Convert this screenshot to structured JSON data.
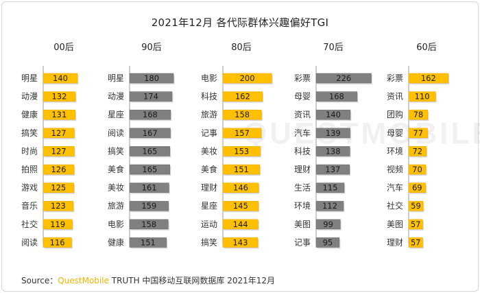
{
  "title": "2021年12月 各代际群体兴趣偏好TGI",
  "watermark": "QUESTMOBILE",
  "footer": {
    "prefix": "Source：",
    "brand": "QuestMobile",
    "rest": " TRUTH 中国移动互联网数据库 2021年12月"
  },
  "colors": {
    "highlight": "#ffc000",
    "highlight_edge": "#f0a800",
    "normal": "#808080",
    "normal_edge": "#6f6f6f"
  },
  "chart_data": [
    {
      "type": "bar",
      "title": "00后",
      "orientation": "horizontal",
      "xlim": [
        0,
        240
      ],
      "categories": [
        "明星",
        "动漫",
        "健康",
        "搞笑",
        "时尚",
        "拍照",
        "游戏",
        "音乐",
        "社交",
        "阅读"
      ],
      "values": [
        140,
        132,
        131,
        127,
        127,
        126,
        125,
        123,
        119,
        116
      ],
      "highlight": [
        true,
        true,
        true,
        true,
        true,
        true,
        true,
        true,
        true,
        true
      ]
    },
    {
      "type": "bar",
      "title": "90后",
      "orientation": "horizontal",
      "xlim": [
        0,
        240
      ],
      "categories": [
        "明星",
        "动漫",
        "星座",
        "阅读",
        "搞笑",
        "美食",
        "美妆",
        "旅游",
        "电影",
        "健康"
      ],
      "values": [
        180,
        174,
        168,
        167,
        165,
        165,
        161,
        159,
        158,
        151
      ],
      "highlight": [
        false,
        false,
        false,
        false,
        false,
        false,
        false,
        false,
        false,
        false
      ]
    },
    {
      "type": "bar",
      "title": "80后",
      "orientation": "horizontal",
      "xlim": [
        0,
        240
      ],
      "categories": [
        "电影",
        "科技",
        "旅游",
        "记事",
        "美妆",
        "美食",
        "理财",
        "星座",
        "运动",
        "搞笑"
      ],
      "values": [
        200,
        162,
        158,
        157,
        153,
        151,
        146,
        145,
        144,
        143
      ],
      "highlight": [
        true,
        true,
        true,
        true,
        true,
        true,
        true,
        true,
        true,
        true
      ]
    },
    {
      "type": "bar",
      "title": "70后",
      "orientation": "horizontal",
      "xlim": [
        0,
        240
      ],
      "categories": [
        "彩票",
        "母婴",
        "资讯",
        "汽车",
        "科技",
        "理财",
        "生活",
        "环境",
        "美图",
        "记事"
      ],
      "values": [
        226,
        168,
        140,
        139,
        138,
        137,
        115,
        112,
        99,
        95
      ],
      "highlight": [
        false,
        false,
        false,
        false,
        false,
        false,
        false,
        false,
        false,
        false
      ]
    },
    {
      "type": "bar",
      "title": "60后",
      "orientation": "horizontal",
      "xlim": [
        0,
        240
      ],
      "categories": [
        "彩票",
        "资讯",
        "团购",
        "母婴",
        "环境",
        "视频",
        "汽车",
        "社交",
        "美图",
        "理财"
      ],
      "values": [
        162,
        110,
        78,
        77,
        72,
        70,
        69,
        59,
        57,
        57
      ],
      "highlight": [
        true,
        true,
        true,
        true,
        true,
        true,
        true,
        true,
        true,
        true
      ]
    }
  ]
}
